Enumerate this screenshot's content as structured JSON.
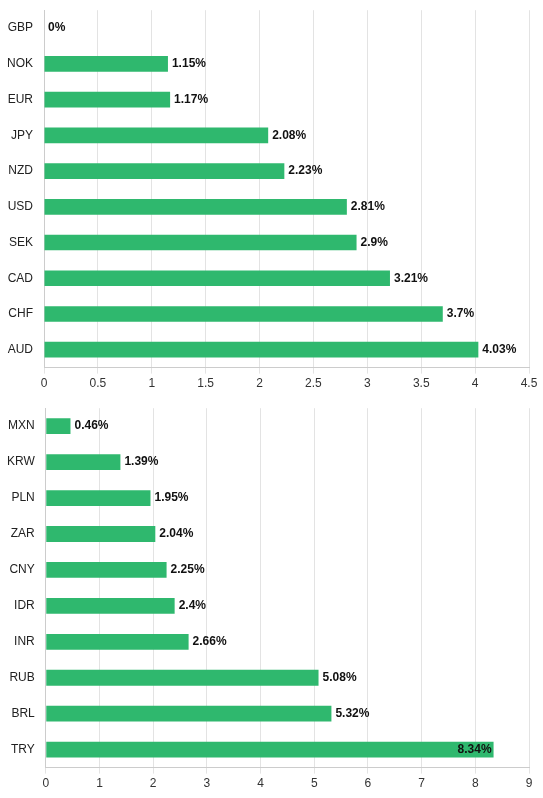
{
  "chart_data": [
    {
      "type": "bar",
      "orientation": "horizontal",
      "categories": [
        "GBP",
        "NOK",
        "EUR",
        "JPY",
        "NZD",
        "USD",
        "SEK",
        "CAD",
        "CHF",
        "AUD"
      ],
      "values": [
        0,
        1.15,
        1.17,
        2.08,
        2.23,
        2.81,
        2.9,
        3.21,
        3.7,
        4.03
      ],
      "value_labels": [
        "0%",
        "1.15%",
        "1.17%",
        "2.08%",
        "2.23%",
        "2.81%",
        "2.9%",
        "3.21%",
        "3.7%",
        "4.03%"
      ],
      "color": "#2fb86e",
      "xlim": [
        0,
        4.5
      ],
      "xticks": [
        0,
        0.5,
        1,
        1.5,
        2,
        2.5,
        3,
        3.5,
        4,
        4.5
      ],
      "grid": true,
      "data_labels": true
    },
    {
      "type": "bar",
      "orientation": "horizontal",
      "categories": [
        "MXN",
        "KRW",
        "PLN",
        "ZAR",
        "CNY",
        "IDR",
        "INR",
        "RUB",
        "BRL",
        "TRY"
      ],
      "values": [
        0.46,
        1.39,
        1.95,
        2.04,
        2.25,
        2.4,
        2.66,
        5.08,
        5.32,
        8.34
      ],
      "value_labels": [
        "0.46%",
        "1.39%",
        "1.95%",
        "2.04%",
        "2.25%",
        "2.4%",
        "2.66%",
        "5.08%",
        "5.32%",
        "8.34%"
      ],
      "color": "#2fb86e",
      "xlim": [
        0,
        9
      ],
      "xticks": [
        0,
        1,
        2,
        3,
        4,
        5,
        6,
        7,
        8,
        9
      ],
      "grid": true,
      "data_labels": true
    }
  ]
}
